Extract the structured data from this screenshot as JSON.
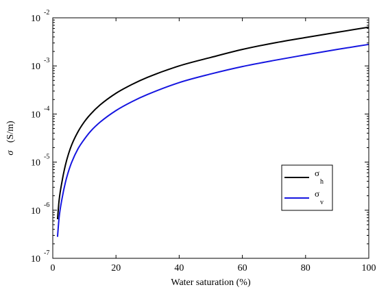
{
  "chart_data": {
    "type": "line",
    "title": "",
    "xlabel": "Water saturation (%)",
    "ylabel_symbol": "σ",
    "ylabel_unit": "(S/m)",
    "xlim": [
      0,
      100
    ],
    "ylim": [
      1e-07,
      0.01
    ],
    "y_scale": "log",
    "grid": false,
    "legend_position": "center-right",
    "x_ticks": [
      {
        "value": 0,
        "label": "0"
      },
      {
        "value": 20,
        "label": "20"
      },
      {
        "value": 40,
        "label": "40"
      },
      {
        "value": 60,
        "label": "60"
      },
      {
        "value": 80,
        "label": "80"
      },
      {
        "value": 100,
        "label": "100"
      }
    ],
    "y_ticks": [
      {
        "value": 1e-07,
        "base": "10",
        "exp": "-7"
      },
      {
        "value": 1e-06,
        "base": "10",
        "exp": "-6"
      },
      {
        "value": 1e-05,
        "base": "10",
        "exp": "-5"
      },
      {
        "value": 0.0001,
        "base": "10",
        "exp": "-4"
      },
      {
        "value": 0.001,
        "base": "10",
        "exp": "-3"
      },
      {
        "value": 0.01,
        "base": "10",
        "exp": "-2"
      }
    ],
    "series": [
      {
        "symbol": "σ",
        "subscript": "h",
        "color": "#000000",
        "x": [
          1.5,
          2,
          3,
          4,
          5,
          6,
          8,
          10,
          12,
          15,
          20,
          25,
          30,
          40,
          50,
          60,
          70,
          80,
          90,
          100
        ],
        "y": [
          6.5e-07,
          1.6e-06,
          4.2e-06,
          8.7e-06,
          1.5e-05,
          2.3e-05,
          4.3e-05,
          6.9e-05,
          0.0001,
          0.000155,
          0.00027,
          0.00041,
          0.00058,
          0.001,
          0.0015,
          0.0022,
          0.003,
          0.0039,
          0.005,
          0.0064
        ]
      },
      {
        "symbol": "σ",
        "subscript": "v",
        "color": "#1515e0",
        "x": [
          1.5,
          2,
          3,
          4,
          5,
          6,
          8,
          10,
          12,
          15,
          20,
          25,
          30,
          40,
          50,
          60,
          70,
          80,
          90,
          100
        ],
        "y": [
          2.8e-07,
          7e-07,
          1.85e-06,
          3.8e-06,
          6.5e-06,
          1e-05,
          1.9e-05,
          3e-05,
          4.4e-05,
          6.8e-05,
          0.000118,
          0.00018,
          0.000255,
          0.00045,
          0.00068,
          0.00097,
          0.0013,
          0.0017,
          0.0022,
          0.0028
        ]
      }
    ]
  }
}
